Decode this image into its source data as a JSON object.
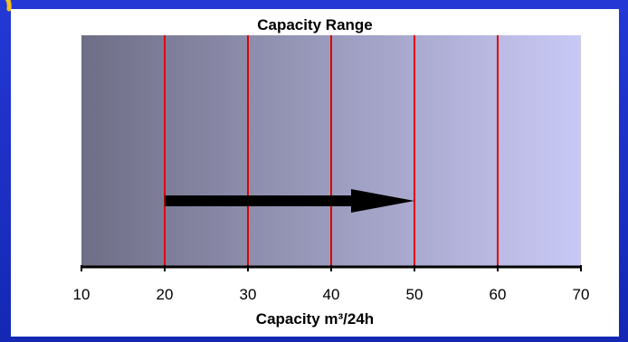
{
  "chart_data": {
    "type": "bar",
    "title": "Capacity Range",
    "xlabel": "Capacity m³/24h",
    "ylabel": "",
    "xlim": [
      10,
      70
    ],
    "x_ticks": [
      10,
      20,
      30,
      40,
      50,
      60,
      70
    ],
    "vertical_lines": [
      20,
      30,
      40,
      50,
      60
    ],
    "range_arrow": {
      "from": 20,
      "to": 50
    },
    "background_gradient": [
      "#6e6e86",
      "#c9c9f6"
    ],
    "colors": {
      "line": "#e00000",
      "arrow": "#000000",
      "frame": "#1a2ec8"
    },
    "grid": false,
    "legend": "none"
  }
}
